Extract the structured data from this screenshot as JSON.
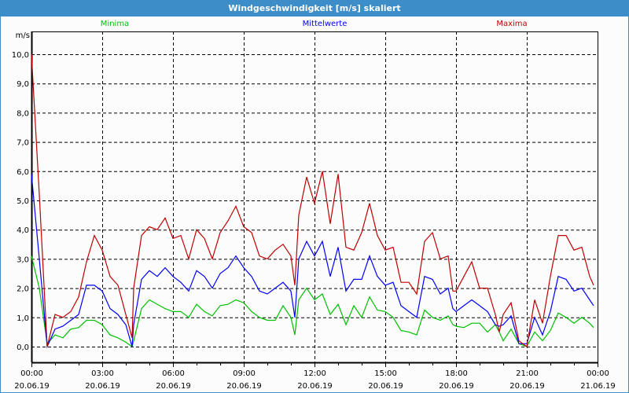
{
  "window": {
    "title": "Windgeschwindigkeit [m/s] skaliert"
  },
  "chart_data": {
    "type": "line",
    "title": "Windgeschwindigkeit [m/s] skaliert",
    "ylabel": "m/s",
    "ylim": [
      -0.5,
      10.8
    ],
    "yticks": [
      0,
      1,
      2,
      3,
      4,
      5,
      6,
      7,
      8,
      9,
      10
    ],
    "ytick_labels": [
      "0,0",
      "1,0",
      "2,0",
      "3,0",
      "4,0",
      "5,0",
      "6,0",
      "7,0",
      "8,0",
      "9,0",
      "10,0"
    ],
    "xlim_minutes": [
      0,
      1440
    ],
    "xtick_minutes": [
      0,
      180,
      360,
      540,
      720,
      900,
      1080,
      1260,
      1440
    ],
    "xtick_labels": [
      {
        "time": "00:00",
        "date": "20.06.19"
      },
      {
        "time": "03:00",
        "date": "20.06.19"
      },
      {
        "time": "06:00",
        "date": "20.06.19"
      },
      {
        "time": "09:00",
        "date": "20.06.19"
      },
      {
        "time": "12:00",
        "date": "20.06.19"
      },
      {
        "time": "15:00",
        "date": "20.06.19"
      },
      {
        "time": "18:00",
        "date": "20.06.19"
      },
      {
        "time": "21:00",
        "date": "20.06.19"
      },
      {
        "time": "00:00",
        "date": "21.06.19"
      }
    ],
    "grid": true,
    "legend_placement": "top",
    "x_minutes": [
      0,
      20,
      40,
      60,
      80,
      100,
      120,
      140,
      160,
      180,
      200,
      220,
      240,
      256,
      260,
      280,
      300,
      320,
      340,
      360,
      380,
      400,
      420,
      440,
      460,
      480,
      500,
      520,
      540,
      560,
      580,
      600,
      620,
      640,
      660,
      670,
      680,
      700,
      720,
      740,
      760,
      780,
      800,
      820,
      840,
      860,
      880,
      900,
      920,
      940,
      960,
      980,
      1000,
      1020,
      1040,
      1060,
      1072,
      1080,
      1100,
      1120,
      1140,
      1160,
      1180,
      1190,
      1200,
      1220,
      1240,
      1260,
      1280,
      1300,
      1320,
      1340,
      1360,
      1380,
      1400,
      1420,
      1430
    ],
    "series": [
      {
        "name": "Minima",
        "color": "#00c000",
        "values": [
          3.1,
          2.0,
          0.1,
          0.4,
          0.3,
          0.6,
          0.65,
          0.9,
          0.9,
          0.75,
          0.4,
          0.3,
          0.15,
          0.0,
          0.2,
          1.3,
          1.6,
          1.45,
          1.3,
          1.2,
          1.2,
          1.0,
          1.45,
          1.2,
          1.05,
          1.4,
          1.45,
          1.6,
          1.5,
          1.2,
          1.0,
          0.9,
          0.9,
          1.4,
          1.0,
          0.4,
          1.6,
          2.0,
          1.6,
          1.8,
          1.1,
          1.45,
          0.75,
          1.4,
          1.0,
          1.7,
          1.25,
          1.2,
          1.0,
          0.55,
          0.5,
          0.4,
          1.25,
          1.0,
          0.9,
          1.05,
          0.75,
          0.7,
          0.65,
          0.8,
          0.8,
          0.5,
          0.75,
          0.5,
          0.2,
          0.6,
          0.1,
          0.0,
          0.5,
          0.2,
          0.55,
          1.15,
          1.0,
          0.8,
          1.0,
          0.8,
          0.65
        ]
      },
      {
        "name": "Mittelwerte",
        "color": "#0000ff",
        "values": [
          5.9,
          3.0,
          0.0,
          0.6,
          0.7,
          0.9,
          1.1,
          2.1,
          2.1,
          1.9,
          1.3,
          1.1,
          0.75,
          0.0,
          0.75,
          2.3,
          2.6,
          2.4,
          2.7,
          2.4,
          2.2,
          1.9,
          2.6,
          2.4,
          2.0,
          2.5,
          2.7,
          3.1,
          2.7,
          2.4,
          1.9,
          1.8,
          2.0,
          2.2,
          1.9,
          1.0,
          3.0,
          3.6,
          3.1,
          3.6,
          2.4,
          3.4,
          1.9,
          2.3,
          2.3,
          3.1,
          2.4,
          2.1,
          2.2,
          1.4,
          1.2,
          1.0,
          2.4,
          2.3,
          1.8,
          2.0,
          1.3,
          1.2,
          1.4,
          1.6,
          1.4,
          1.2,
          0.75,
          0.7,
          0.75,
          1.05,
          0.1,
          0.1,
          1.0,
          0.4,
          1.2,
          2.4,
          2.3,
          1.9,
          2.0,
          1.6,
          1.4
        ]
      },
      {
        "name": "Maxima",
        "color": "#c00000",
        "values": [
          10.0,
          5.2,
          0.0,
          1.1,
          1.0,
          1.2,
          1.7,
          2.9,
          3.8,
          3.3,
          2.4,
          2.1,
          1.1,
          0.3,
          2.0,
          3.8,
          4.1,
          4.0,
          4.4,
          3.7,
          3.8,
          3.0,
          4.0,
          3.7,
          3.0,
          3.9,
          4.3,
          4.8,
          4.1,
          3.9,
          3.1,
          3.0,
          3.3,
          3.5,
          3.1,
          2.1,
          4.5,
          5.8,
          4.9,
          6.0,
          4.2,
          5.9,
          3.4,
          3.3,
          3.9,
          4.9,
          3.8,
          3.3,
          3.4,
          2.2,
          2.2,
          1.8,
          3.6,
          3.9,
          3.0,
          3.1,
          1.9,
          1.9,
          2.4,
          2.9,
          2.0,
          2.0,
          1.1,
          0.5,
          1.1,
          1.5,
          0.2,
          0.0,
          1.6,
          0.8,
          2.4,
          3.8,
          3.8,
          3.3,
          3.4,
          2.4,
          2.1
        ]
      }
    ]
  }
}
